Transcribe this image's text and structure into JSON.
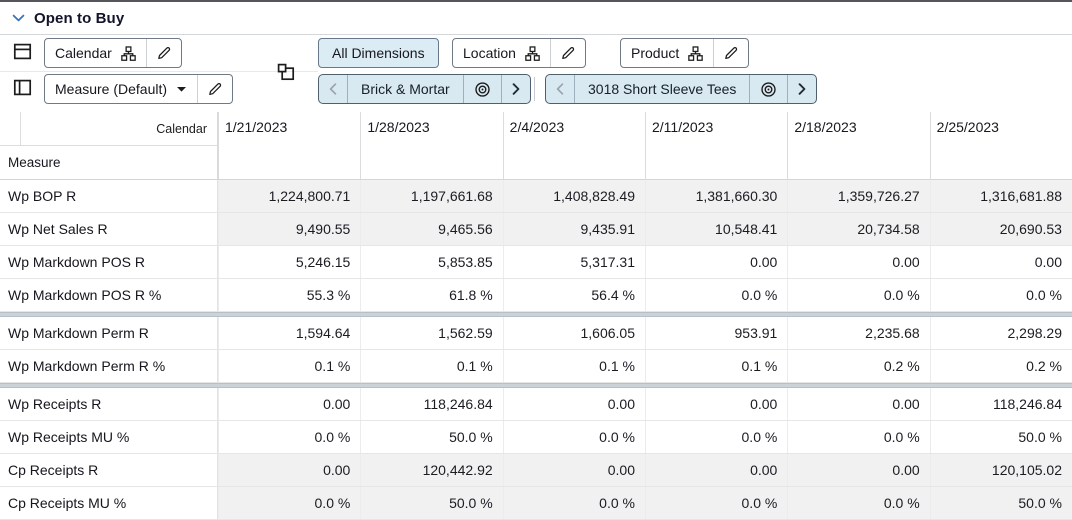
{
  "panel": {
    "title": "Open to Buy"
  },
  "toolbar": {
    "row_axis_button": {
      "label": "Calendar"
    },
    "measure_selector": {
      "label": "Measure (Default)"
    },
    "dimension_tabs": [
      {
        "label": "All Dimensions",
        "selected": true
      },
      {
        "label": "Location",
        "selected": false
      },
      {
        "label": "Product",
        "selected": false
      }
    ],
    "page_selectors": [
      {
        "label": "Brick & Mortar"
      },
      {
        "label": "3018 Short Sleeve Tees"
      }
    ]
  },
  "table": {
    "corner_label": "Calendar",
    "row_axis_label": "Measure",
    "columns": [
      "1/21/2023",
      "1/28/2023",
      "2/4/2023",
      "2/11/2023",
      "2/18/2023",
      "2/25/2023"
    ],
    "rows": [
      {
        "label": "Wp BOP R",
        "shaded": true,
        "separator_after": false,
        "values": [
          "1,224,800.71",
          "1,197,661.68",
          "1,408,828.49",
          "1,381,660.30",
          "1,359,726.27",
          "1,316,681.88"
        ]
      },
      {
        "label": "Wp Net Sales R",
        "shaded": true,
        "separator_after": false,
        "values": [
          "9,490.55",
          "9,465.56",
          "9,435.91",
          "10,548.41",
          "20,734.58",
          "20,690.53"
        ]
      },
      {
        "label": "Wp Markdown POS R",
        "shaded": false,
        "separator_after": false,
        "values": [
          "5,246.15",
          "5,853.85",
          "5,317.31",
          "0.00",
          "0.00",
          "0.00"
        ]
      },
      {
        "label": "Wp Markdown POS R %",
        "shaded": false,
        "separator_after": true,
        "values": [
          "55.3 %",
          "61.8 %",
          "56.4 %",
          "0.0 %",
          "0.0 %",
          "0.0 %"
        ]
      },
      {
        "label": "Wp Markdown Perm R",
        "shaded": false,
        "separator_after": false,
        "values": [
          "1,594.64",
          "1,562.59",
          "1,606.05",
          "953.91",
          "2,235.68",
          "2,298.29"
        ]
      },
      {
        "label": "Wp Markdown Perm R %",
        "shaded": false,
        "separator_after": true,
        "values": [
          "0.1 %",
          "0.1 %",
          "0.1 %",
          "0.1 %",
          "0.2 %",
          "0.2 %"
        ]
      },
      {
        "label": "Wp Receipts R",
        "shaded": false,
        "separator_after": false,
        "values": [
          "0.00",
          "118,246.84",
          "0.00",
          "0.00",
          "0.00",
          "118,246.84"
        ]
      },
      {
        "label": "Wp Receipts MU %",
        "shaded": false,
        "separator_after": false,
        "values": [
          "0.0 %",
          "50.0 %",
          "0.0 %",
          "0.0 %",
          "0.0 %",
          "50.0 %"
        ]
      },
      {
        "label": "Cp Receipts R",
        "shaded": true,
        "separator_after": false,
        "values": [
          "0.00",
          "120,442.92",
          "0.00",
          "0.00",
          "0.00",
          "120,105.02"
        ]
      },
      {
        "label": "Cp Receipts MU %",
        "shaded": true,
        "separator_after": false,
        "values": [
          "0.0 %",
          "50.0 %",
          "0.0 %",
          "0.0 %",
          "0.0 %",
          "50.0 %"
        ]
      }
    ]
  },
  "colors": {
    "selected_tab_fill": "#dcecf5",
    "page_pill_fill": "#d8e9f2",
    "page_pill_border": "#4e5f6d",
    "shaded_cell": "#f1f1f1",
    "separator_band": "#cbd3d9",
    "title_chevron": "#3a73b8",
    "top_strip": "#54565b"
  },
  "icons": {
    "panel_collapse": "chevron-down-icon",
    "row_axis": "table-rows-icon",
    "column_axis": "table-columns-icon",
    "page_axis": "layers-icon",
    "hierarchy": "org-chart-icon",
    "edit": "pencil-icon",
    "dropdown": "caret-down-icon",
    "prev": "chevron-left-icon",
    "next": "chevron-right-icon",
    "locate": "bullseye-icon"
  }
}
